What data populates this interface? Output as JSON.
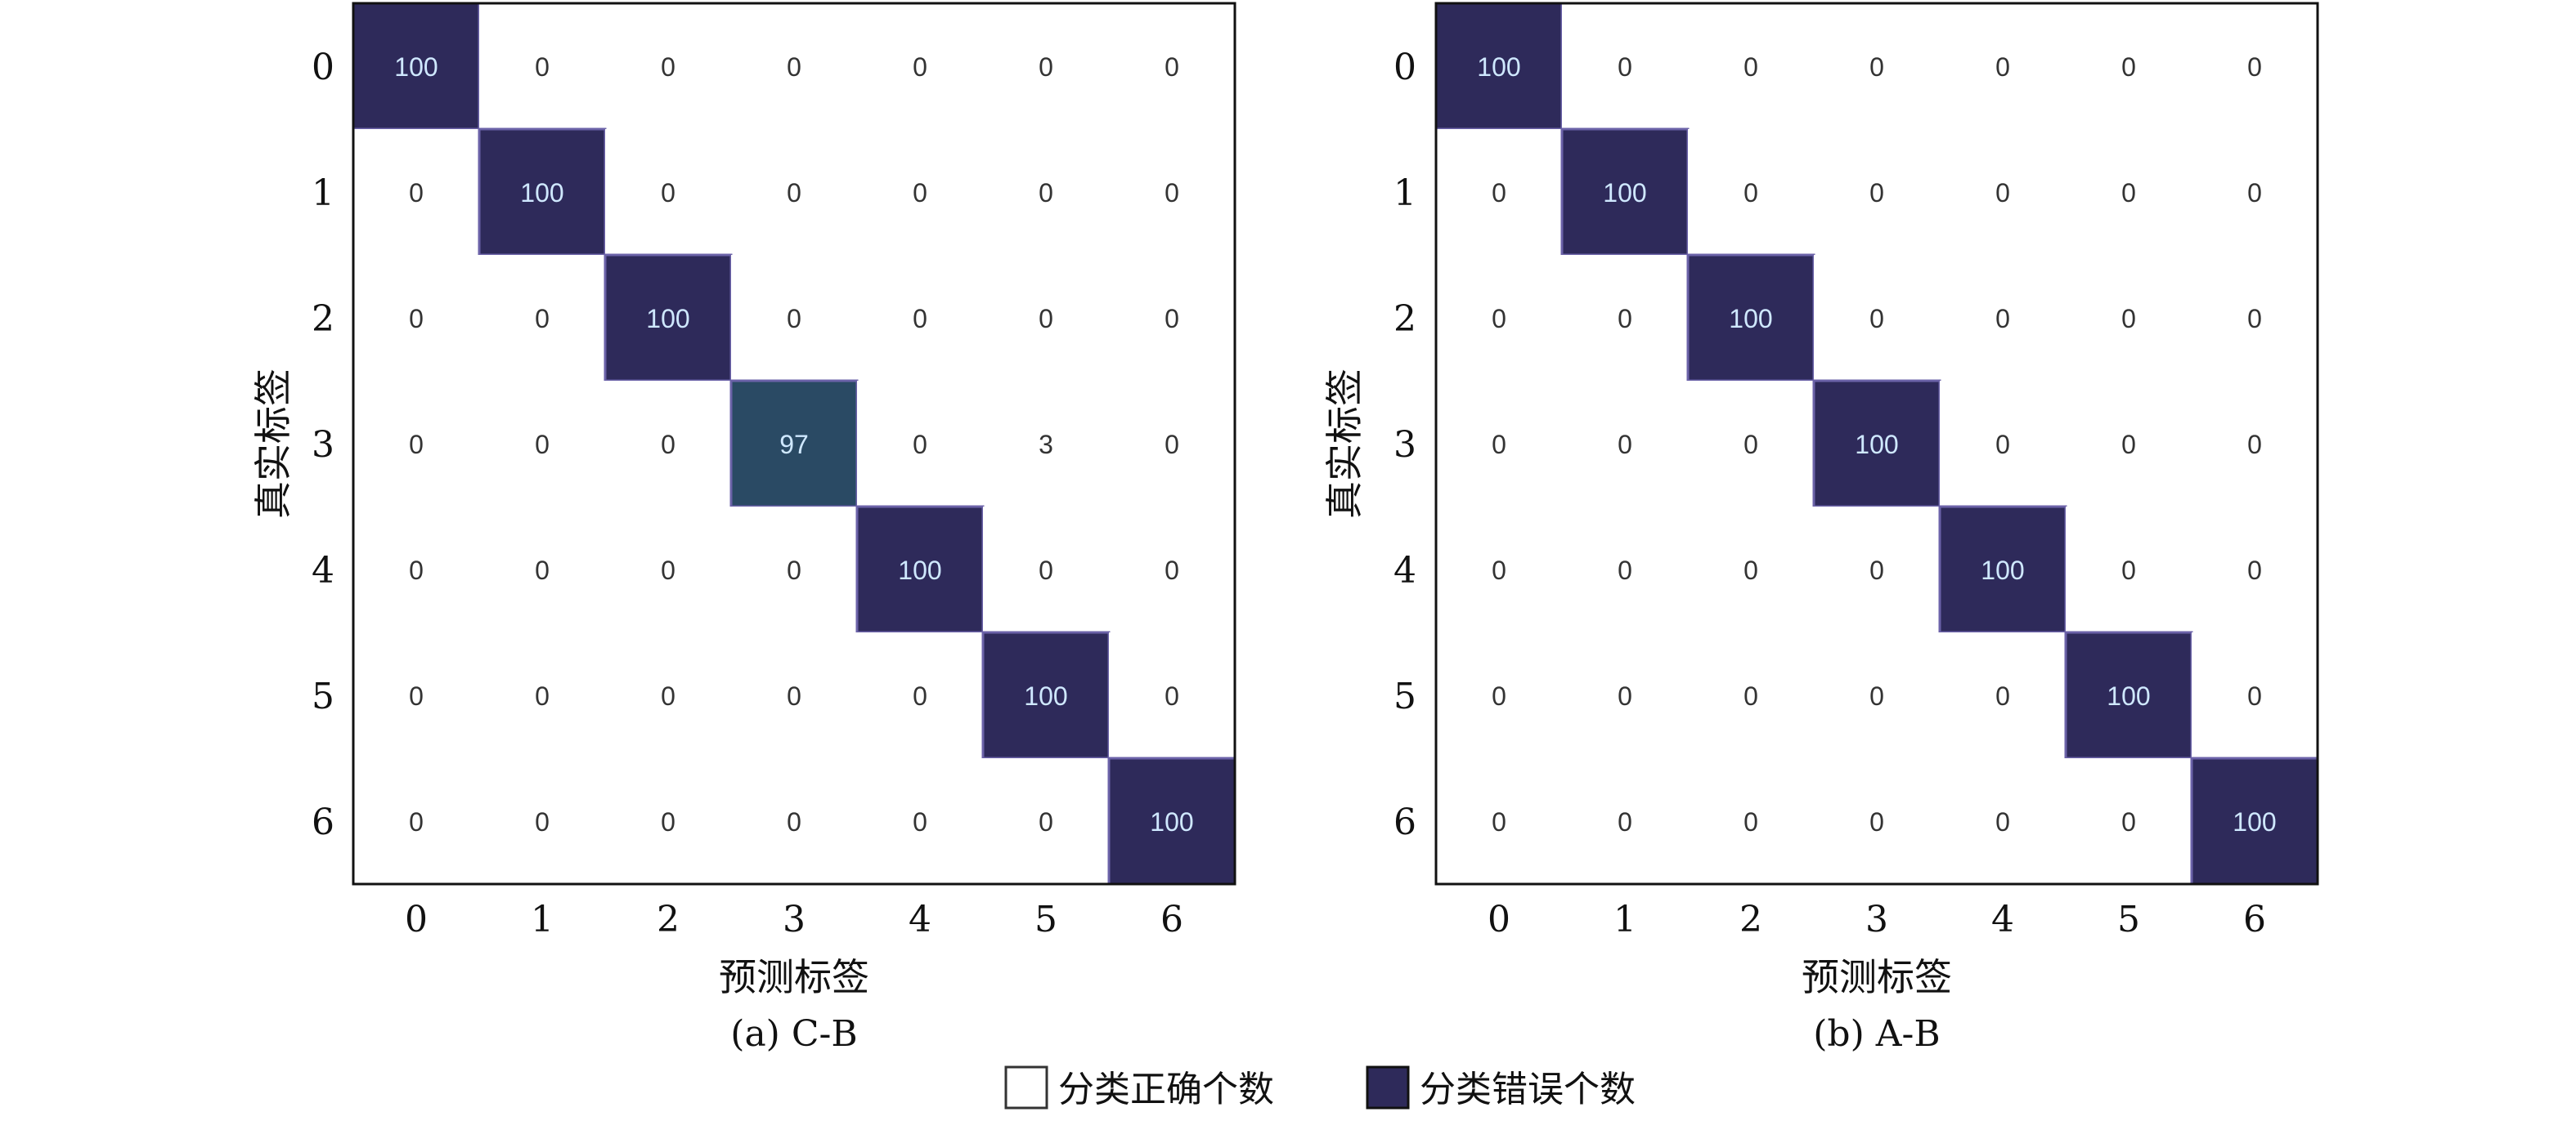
{
  "figure": {
    "legend": {
      "items": [
        {
          "label": "分类正确个数",
          "color": "#ffffff"
        },
        {
          "label": "分类错误个数",
          "color": "#2e2a5a"
        }
      ]
    }
  },
  "chart_data": [
    {
      "type": "heatmap",
      "caption": "(a) C-B",
      "xlabel": "预测标签",
      "ylabel": "真实标签",
      "x_ticks": [
        "0",
        "1",
        "2",
        "3",
        "4",
        "5",
        "6"
      ],
      "y_ticks": [
        "0",
        "1",
        "2",
        "3",
        "4",
        "5",
        "6"
      ],
      "matrix": [
        [
          100,
          0,
          0,
          0,
          0,
          0,
          0
        ],
        [
          0,
          100,
          0,
          0,
          0,
          0,
          0
        ],
        [
          0,
          0,
          100,
          0,
          0,
          0,
          0
        ],
        [
          0,
          0,
          0,
          97,
          0,
          3,
          0
        ],
        [
          0,
          0,
          0,
          0,
          100,
          0,
          0
        ],
        [
          0,
          0,
          0,
          0,
          0,
          100,
          0
        ],
        [
          0,
          0,
          0,
          0,
          0,
          0,
          100
        ]
      ],
      "colors": {
        "high": "#2e2a5a",
        "mid": "#2a4a64",
        "low": "#ffffff",
        "label_on_dark": "#cfe8ff",
        "label_on_light": "#333333"
      }
    },
    {
      "type": "heatmap",
      "caption": "(b) A-B",
      "xlabel": "预测标签",
      "ylabel": "真实标签",
      "x_ticks": [
        "0",
        "1",
        "2",
        "3",
        "4",
        "5",
        "6"
      ],
      "y_ticks": [
        "0",
        "1",
        "2",
        "3",
        "4",
        "5",
        "6"
      ],
      "matrix": [
        [
          100,
          0,
          0,
          0,
          0,
          0,
          0
        ],
        [
          0,
          100,
          0,
          0,
          0,
          0,
          0
        ],
        [
          0,
          0,
          100,
          0,
          0,
          0,
          0
        ],
        [
          0,
          0,
          0,
          100,
          0,
          0,
          0
        ],
        [
          0,
          0,
          0,
          0,
          100,
          0,
          0
        ],
        [
          0,
          0,
          0,
          0,
          0,
          100,
          0
        ],
        [
          0,
          0,
          0,
          0,
          0,
          0,
          100
        ]
      ],
      "colors": {
        "high": "#2e2a5a",
        "mid": "#2a4a64",
        "low": "#ffffff",
        "label_on_dark": "#cfe8ff",
        "label_on_light": "#333333"
      }
    }
  ]
}
